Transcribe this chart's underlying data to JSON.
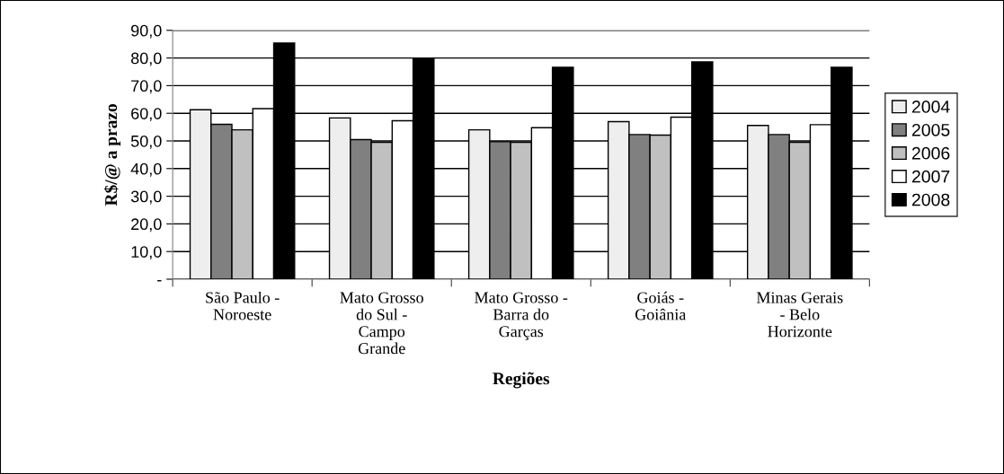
{
  "chart_data": {
    "type": "bar",
    "xlabel": "Regiões",
    "ylabel": "R$/@ a prazo",
    "categories": [
      "São Paulo -\nNoroeste",
      "Mato Grosso\ndo Sul -\nCampo\nGrande",
      "Mato Grosso -\nBarra do\nGarças",
      "Goiás -\nGoiânia",
      "Minas Gerais\n- Belo\nHorizonte"
    ],
    "series": [
      {
        "name": "2004",
        "color": "#eeeeee",
        "values": [
          61.3,
          58.3,
          54.0,
          57.0,
          55.6
        ]
      },
      {
        "name": "2005",
        "color": "#808080",
        "values": [
          56.0,
          50.5,
          49.7,
          52.3,
          52.3
        ]
      },
      {
        "name": "2006",
        "color": "#c0c0c0",
        "values": [
          54.0,
          49.5,
          49.5,
          52.1,
          49.5
        ]
      },
      {
        "name": "2007",
        "color": "#ffffff",
        "values": [
          61.7,
          57.3,
          54.8,
          58.6,
          55.9
        ]
      },
      {
        "name": "2008",
        "color": "#000000",
        "values": [
          85.4,
          80.0,
          76.6,
          78.6,
          76.6
        ]
      }
    ],
    "ylim": [
      0,
      90
    ],
    "yticks": [
      {
        "value": 0,
        "label": "-"
      },
      {
        "value": 10,
        "label": "10,0"
      },
      {
        "value": 20,
        "label": "20,0"
      },
      {
        "value": 30,
        "label": "30,0"
      },
      {
        "value": 40,
        "label": "40,0"
      },
      {
        "value": 50,
        "label": "50,0"
      },
      {
        "value": 60,
        "label": "60,0"
      },
      {
        "value": 70,
        "label": "70,0"
      },
      {
        "value": 80,
        "label": "80,0"
      },
      {
        "value": 90,
        "label": "90,0"
      }
    ],
    "grid": "y",
    "legend": "right"
  }
}
